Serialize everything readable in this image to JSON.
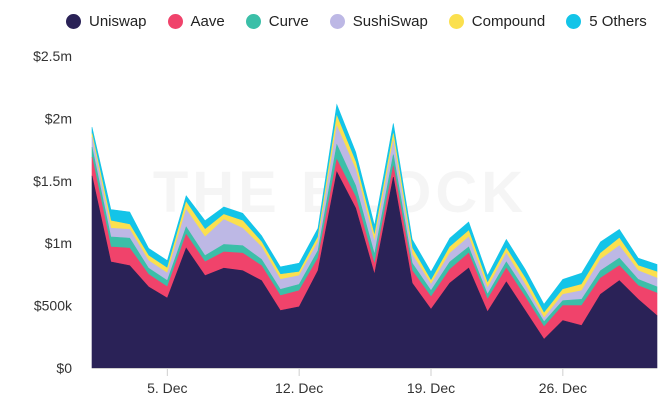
{
  "watermark": "THE BLOCK",
  "chart_data": {
    "type": "area",
    "stacked": true,
    "xlabel": "",
    "ylabel": "",
    "ylim": [
      0,
      2500000
    ],
    "yticks": [
      {
        "value": 0,
        "label": "$0"
      },
      {
        "value": 500000,
        "label": "$500k"
      },
      {
        "value": 1000000,
        "label": "$1m"
      },
      {
        "value": 1500000,
        "label": "$1.5m"
      },
      {
        "value": 2000000,
        "label": "$2m"
      },
      {
        "value": 2500000,
        "label": "$2.5m"
      }
    ],
    "xticks": [
      {
        "label": "5. Dec",
        "value": "2021-12-05"
      },
      {
        "label": "12. Dec",
        "value": "2021-12-12"
      },
      {
        "label": "19. Dec",
        "value": "2021-12-19"
      },
      {
        "label": "26. Dec",
        "value": "2021-12-26"
      }
    ],
    "grid": false,
    "legend_position": "top-left",
    "x": [
      "2021-12-01",
      "2021-12-02",
      "2021-12-03",
      "2021-12-04",
      "2021-12-05",
      "2021-12-06",
      "2021-12-07",
      "2021-12-08",
      "2021-12-09",
      "2021-12-10",
      "2021-12-11",
      "2021-12-12",
      "2021-12-13",
      "2021-12-14",
      "2021-12-15",
      "2021-12-16",
      "2021-12-17",
      "2021-12-18",
      "2021-12-19",
      "2021-12-20",
      "2021-12-21",
      "2021-12-22",
      "2021-12-23",
      "2021-12-24",
      "2021-12-25",
      "2021-12-26",
      "2021-12-27",
      "2021-12-28",
      "2021-12-29",
      "2021-12-30",
      "2021-12-31"
    ],
    "series": [
      {
        "name": "Uniswap",
        "color": "#2a2257",
        "values": [
          1540000,
          850000,
          820000,
          650000,
          560000,
          960000,
          740000,
          800000,
          780000,
          700000,
          460000,
          490000,
          780000,
          1570000,
          1280000,
          750000,
          1530000,
          680000,
          470000,
          680000,
          800000,
          450000,
          690000,
          460000,
          230000,
          380000,
          340000,
          590000,
          700000,
          550000,
          420000
        ]
      },
      {
        "name": "Aave",
        "color": "#f0436b",
        "values": [
          150000,
          120000,
          140000,
          100000,
          90000,
          110000,
          110000,
          130000,
          140000,
          120000,
          120000,
          130000,
          100000,
          100000,
          90000,
          80000,
          90000,
          100000,
          100000,
          110000,
          120000,
          100000,
          110000,
          110000,
          100000,
          120000,
          160000,
          130000,
          120000,
          110000,
          180000
        ]
      },
      {
        "name": "Curve",
        "color": "#3bbfa8",
        "values": [
          80000,
          80000,
          80000,
          50000,
          50000,
          60000,
          50000,
          60000,
          60000,
          50000,
          50000,
          50000,
          60000,
          120000,
          90000,
          80000,
          90000,
          60000,
          50000,
          60000,
          50000,
          40000,
          50000,
          50000,
          40000,
          40000,
          50000,
          60000,
          60000,
          50000,
          50000
        ]
      },
      {
        "name": "SushiSwap",
        "color": "#bdb8e5",
        "values": [
          80000,
          70000,
          70000,
          60000,
          60000,
          140000,
          150000,
          200000,
          140000,
          100000,
          80000,
          70000,
          70000,
          150000,
          130000,
          100000,
          110000,
          70000,
          50000,
          70000,
          80000,
          50000,
          70000,
          50000,
          30000,
          50000,
          70000,
          90000,
          100000,
          70000,
          70000
        ]
      },
      {
        "name": "Compound",
        "color": "#fbe04e",
        "values": [
          30000,
          60000,
          40000,
          40000,
          40000,
          60000,
          60000,
          40000,
          60000,
          40000,
          40000,
          30000,
          40000,
          80000,
          60000,
          50000,
          60000,
          50000,
          30000,
          50000,
          50000,
          40000,
          40000,
          50000,
          40000,
          40000,
          50000,
          50000,
          60000,
          40000,
          50000
        ]
      },
      {
        "name": "5 Others",
        "color": "#13c4e8",
        "values": [
          50000,
          90000,
          100000,
          60000,
          60000,
          50000,
          70000,
          60000,
          60000,
          50000,
          60000,
          70000,
          70000,
          90000,
          80000,
          80000,
          80000,
          70000,
          70000,
          70000,
          70000,
          60000,
          70000,
          70000,
          70000,
          80000,
          90000,
          90000,
          70000,
          60000,
          60000
        ]
      }
    ]
  }
}
